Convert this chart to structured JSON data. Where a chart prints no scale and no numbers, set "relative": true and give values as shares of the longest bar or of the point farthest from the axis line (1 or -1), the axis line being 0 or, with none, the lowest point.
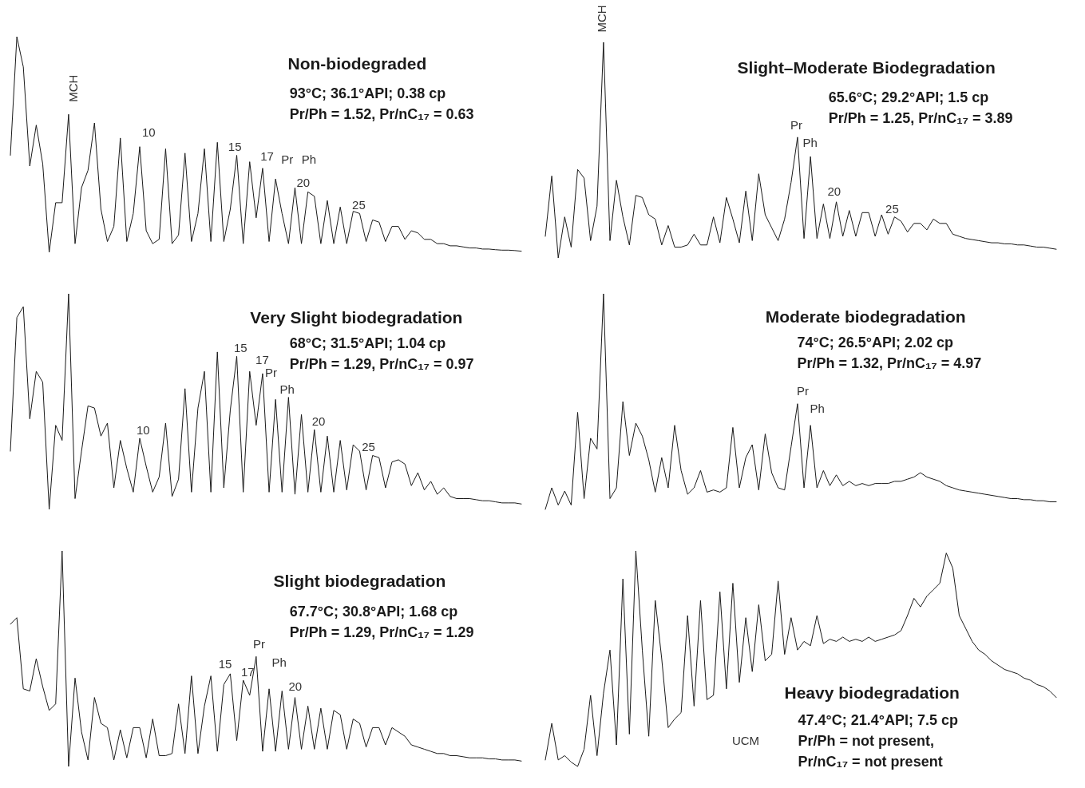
{
  "chart_data": [
    {
      "type": "line",
      "relative": true,
      "tick_labels": false,
      "title": "Non-biodegraded",
      "subtitle": "93°C; 36.1°API; 0.38 cp\nPr/Ph = 1.52, Pr/nC₁₇ = 0.63",
      "annotations": [
        "MCH",
        "10",
        "15",
        "17",
        "Pr",
        "Ph",
        "20",
        "25"
      ],
      "color": "#1a1a1a",
      "categories": [
        null,
        null,
        null,
        null,
        null,
        null,
        null,
        null,
        null,
        null,
        null,
        null,
        null,
        null,
        null,
        null,
        null,
        null,
        null,
        null,
        null,
        null,
        null,
        null,
        null,
        null,
        null,
        null,
        null,
        null,
        null,
        null,
        null,
        null,
        null,
        null,
        null,
        null,
        null,
        null,
        null,
        null,
        null,
        null,
        null,
        null,
        null,
        null,
        null,
        null,
        null,
        null,
        null,
        null,
        null,
        null,
        null,
        null,
        null,
        null,
        null,
        null,
        null,
        null,
        null,
        null,
        null,
        null,
        null,
        null,
        null,
        null,
        null,
        null,
        null,
        null,
        null,
        null,
        null,
        null
      ],
      "values": [
        0.45,
        1.0,
        0.86,
        0.4,
        0.59,
        0.41,
        0.0,
        0.23,
        0.23,
        0.64,
        0.04,
        0.3,
        0.38,
        0.6,
        0.2,
        0.05,
        0.12,
        0.53,
        0.05,
        0.18,
        0.49,
        0.1,
        0.04,
        0.06,
        0.48,
        0.04,
        0.08,
        0.46,
        0.05,
        0.18,
        0.48,
        0.05,
        0.51,
        0.05,
        0.2,
        0.45,
        0.04,
        0.42,
        0.16,
        0.39,
        0.05,
        0.34,
        0.18,
        0.04,
        0.3,
        0.04,
        0.28,
        0.26,
        0.04,
        0.24,
        0.04,
        0.21,
        0.04,
        0.19,
        0.18,
        0.05,
        0.15,
        0.14,
        0.05,
        0.12,
        0.12,
        0.06,
        0.1,
        0.09,
        0.06,
        0.06,
        0.04,
        0.04,
        0.03,
        0.03,
        0.025,
        0.02,
        0.02,
        0.015,
        0.015,
        0.012,
        0.01,
        0.01,
        0.008,
        0.005
      ]
    },
    {
      "type": "line",
      "relative": true,
      "tick_labels": false,
      "title": "Slight–Moderate Biodegradation",
      "subtitle": "65.6°C; 29.2°API; 1.5 cp\nPr/Ph = 1.25, Pr/nC₁₇ = 3.89",
      "annotations": [
        "MCH",
        "Pr",
        "Ph",
        "20",
        "25"
      ],
      "color": "#1a1a1a",
      "categories": [
        null,
        null,
        null,
        null,
        null,
        null,
        null,
        null,
        null,
        null,
        null,
        null,
        null,
        null,
        null,
        null,
        null,
        null,
        null,
        null,
        null,
        null,
        null,
        null,
        null,
        null,
        null,
        null,
        null,
        null,
        null,
        null,
        null,
        null,
        null,
        null,
        null,
        null,
        null,
        null,
        null,
        null,
        null,
        null,
        null,
        null,
        null,
        null,
        null,
        null,
        null,
        null,
        null,
        null,
        null,
        null,
        null,
        null,
        null,
        null,
        null,
        null,
        null,
        null,
        null,
        null,
        null,
        null,
        null,
        null,
        null,
        null,
        null,
        null,
        null,
        null,
        null,
        null,
        null,
        null
      ],
      "values": [
        0.1,
        0.38,
        0.0,
        0.19,
        0.05,
        0.41,
        0.37,
        0.08,
        0.24,
        1.0,
        0.08,
        0.36,
        0.19,
        0.06,
        0.29,
        0.28,
        0.2,
        0.18,
        0.06,
        0.15,
        0.05,
        0.05,
        0.06,
        0.11,
        0.06,
        0.06,
        0.19,
        0.07,
        0.28,
        0.18,
        0.07,
        0.31,
        0.08,
        0.39,
        0.2,
        0.14,
        0.08,
        0.18,
        0.35,
        0.56,
        0.09,
        0.47,
        0.09,
        0.25,
        0.09,
        0.26,
        0.1,
        0.22,
        0.1,
        0.21,
        0.21,
        0.1,
        0.2,
        0.11,
        0.19,
        0.17,
        0.12,
        0.16,
        0.16,
        0.13,
        0.18,
        0.16,
        0.16,
        0.11,
        0.1,
        0.09,
        0.085,
        0.08,
        0.075,
        0.07,
        0.07,
        0.065,
        0.065,
        0.06,
        0.06,
        0.055,
        0.05,
        0.05,
        0.045,
        0.04
      ]
    },
    {
      "type": "line",
      "relative": true,
      "tick_labels": false,
      "title": "Very Slight biodegradation",
      "subtitle": "68°C; 31.5°API; 1.04 cp\nPr/Ph = 1.29, Pr/nC₁₇ = 0.97",
      "annotations": [
        "15",
        "17",
        "Pr",
        "Ph",
        "10",
        "20",
        "25"
      ],
      "color": "#1a1a1a",
      "categories": [
        null,
        null,
        null,
        null,
        null,
        null,
        null,
        null,
        null,
        null,
        null,
        null,
        null,
        null,
        null,
        null,
        null,
        null,
        null,
        null,
        null,
        null,
        null,
        null,
        null,
        null,
        null,
        null,
        null,
        null,
        null,
        null,
        null,
        null,
        null,
        null,
        null,
        null,
        null,
        null,
        null,
        null,
        null,
        null,
        null,
        null,
        null,
        null,
        null,
        null,
        null,
        null,
        null,
        null,
        null,
        null,
        null,
        null,
        null,
        null,
        null,
        null,
        null,
        null,
        null,
        null,
        null,
        null,
        null,
        null,
        null,
        null,
        null,
        null,
        null,
        null,
        null,
        null,
        null,
        null
      ],
      "values": [
        0.27,
        0.89,
        0.94,
        0.42,
        0.64,
        0.59,
        0.0,
        0.39,
        0.32,
        1.0,
        0.05,
        0.27,
        0.48,
        0.47,
        0.34,
        0.4,
        0.1,
        0.32,
        0.19,
        0.08,
        0.33,
        0.2,
        0.08,
        0.15,
        0.4,
        0.06,
        0.14,
        0.56,
        0.08,
        0.47,
        0.64,
        0.08,
        0.73,
        0.1,
        0.46,
        0.71,
        0.08,
        0.64,
        0.39,
        0.63,
        0.08,
        0.51,
        0.08,
        0.52,
        0.07,
        0.44,
        0.08,
        0.37,
        0.08,
        0.34,
        0.08,
        0.32,
        0.09,
        0.3,
        0.27,
        0.09,
        0.25,
        0.24,
        0.1,
        0.22,
        0.23,
        0.21,
        0.11,
        0.17,
        0.09,
        0.13,
        0.07,
        0.1,
        0.06,
        0.05,
        0.05,
        0.05,
        0.045,
        0.04,
        0.04,
        0.035,
        0.03,
        0.03,
        0.03,
        0.025
      ]
    },
    {
      "type": "line",
      "relative": true,
      "tick_labels": false,
      "title": "Moderate biodegradation",
      "subtitle": "74°C; 26.5°API; 2.02 cp\nPr/Ph = 1.32, Pr/nC₁₇ = 4.97",
      "annotations": [
        "Pr",
        "Ph"
      ],
      "color": "#1a1a1a",
      "categories": [
        null,
        null,
        null,
        null,
        null,
        null,
        null,
        null,
        null,
        null,
        null,
        null,
        null,
        null,
        null,
        null,
        null,
        null,
        null,
        null,
        null,
        null,
        null,
        null,
        null,
        null,
        null,
        null,
        null,
        null,
        null,
        null,
        null,
        null,
        null,
        null,
        null,
        null,
        null,
        null,
        null,
        null,
        null,
        null,
        null,
        null,
        null,
        null,
        null,
        null,
        null,
        null,
        null,
        null,
        null,
        null,
        null,
        null,
        null,
        null,
        null,
        null,
        null,
        null,
        null,
        null,
        null,
        null,
        null,
        null,
        null,
        null,
        null,
        null,
        null,
        null,
        null,
        null,
        null,
        null
      ],
      "values": [
        0.0,
        0.1,
        0.02,
        0.085,
        0.02,
        0.45,
        0.05,
        0.33,
        0.28,
        1.0,
        0.05,
        0.1,
        0.5,
        0.25,
        0.4,
        0.34,
        0.23,
        0.08,
        0.24,
        0.1,
        0.39,
        0.18,
        0.07,
        0.1,
        0.18,
        0.08,
        0.09,
        0.08,
        0.1,
        0.38,
        0.1,
        0.24,
        0.3,
        0.09,
        0.35,
        0.17,
        0.1,
        0.09,
        0.29,
        0.49,
        0.1,
        0.39,
        0.1,
        0.18,
        0.11,
        0.16,
        0.11,
        0.13,
        0.11,
        0.12,
        0.11,
        0.12,
        0.12,
        0.12,
        0.13,
        0.13,
        0.14,
        0.15,
        0.17,
        0.15,
        0.14,
        0.13,
        0.11,
        0.1,
        0.09,
        0.085,
        0.08,
        0.075,
        0.07,
        0.065,
        0.06,
        0.055,
        0.05,
        0.05,
        0.045,
        0.045,
        0.04,
        0.04,
        0.035,
        0.035
      ]
    },
    {
      "type": "line",
      "relative": true,
      "tick_labels": false,
      "title": "Slight biodegradation",
      "subtitle": "67.7°C; 30.8°API; 1.68 cp\nPr/Ph = 1.29, Pr/nC₁₇ = 1.29",
      "annotations": [
        "15",
        "17",
        "Pr",
        "Ph",
        "20"
      ],
      "color": "#1a1a1a",
      "categories": [
        null,
        null,
        null,
        null,
        null,
        null,
        null,
        null,
        null,
        null,
        null,
        null,
        null,
        null,
        null,
        null,
        null,
        null,
        null,
        null,
        null,
        null,
        null,
        null,
        null,
        null,
        null,
        null,
        null,
        null,
        null,
        null,
        null,
        null,
        null,
        null,
        null,
        null,
        null,
        null,
        null,
        null,
        null,
        null,
        null,
        null,
        null,
        null,
        null,
        null,
        null,
        null,
        null,
        null,
        null,
        null,
        null,
        null,
        null,
        null,
        null,
        null,
        null,
        null,
        null,
        null,
        null,
        null,
        null,
        null,
        null,
        null,
        null,
        null,
        null,
        null,
        null,
        null,
        null,
        null
      ],
      "values": [
        0.66,
        0.69,
        0.36,
        0.35,
        0.5,
        0.37,
        0.26,
        0.29,
        1.0,
        0.0,
        0.41,
        0.16,
        0.03,
        0.32,
        0.2,
        0.18,
        0.03,
        0.17,
        0.04,
        0.18,
        0.18,
        0.04,
        0.22,
        0.05,
        0.05,
        0.06,
        0.29,
        0.06,
        0.42,
        0.06,
        0.28,
        0.42,
        0.07,
        0.38,
        0.43,
        0.12,
        0.4,
        0.33,
        0.51,
        0.07,
        0.36,
        0.07,
        0.35,
        0.08,
        0.32,
        0.08,
        0.28,
        0.08,
        0.27,
        0.08,
        0.26,
        0.24,
        0.08,
        0.22,
        0.2,
        0.09,
        0.18,
        0.18,
        0.1,
        0.18,
        0.16,
        0.14,
        0.1,
        0.09,
        0.08,
        0.07,
        0.06,
        0.06,
        0.05,
        0.05,
        0.045,
        0.04,
        0.04,
        0.04,
        0.035,
        0.035,
        0.03,
        0.03,
        0.03,
        0.025
      ]
    },
    {
      "type": "line",
      "relative": true,
      "tick_labels": false,
      "title": "Heavy biodegradation",
      "subtitle": "47.4°C; 21.4°API; 7.5 cp\nPr/Ph = not present,\nPr/nC₁₇ = not present",
      "annotations": [
        "UCM"
      ],
      "color": "#1a1a1a",
      "categories": [
        null,
        null,
        null,
        null,
        null,
        null,
        null,
        null,
        null,
        null,
        null,
        null,
        null,
        null,
        null,
        null,
        null,
        null,
        null,
        null,
        null,
        null,
        null,
        null,
        null,
        null,
        null,
        null,
        null,
        null,
        null,
        null,
        null,
        null,
        null,
        null,
        null,
        null,
        null,
        null,
        null,
        null,
        null,
        null,
        null,
        null,
        null,
        null,
        null,
        null,
        null,
        null,
        null,
        null,
        null,
        null,
        null,
        null,
        null,
        null,
        null,
        null,
        null,
        null,
        null,
        null,
        null,
        null,
        null,
        null,
        null,
        null,
        null,
        null,
        null,
        null,
        null,
        null,
        null,
        null
      ],
      "values": [
        0.03,
        0.2,
        0.03,
        0.05,
        0.02,
        0.0,
        0.08,
        0.33,
        0.05,
        0.34,
        0.54,
        0.1,
        0.87,
        0.15,
        1.0,
        0.54,
        0.14,
        0.77,
        0.5,
        0.18,
        0.22,
        0.25,
        0.7,
        0.28,
        0.77,
        0.31,
        0.33,
        0.81,
        0.36,
        0.85,
        0.39,
        0.69,
        0.44,
        0.75,
        0.49,
        0.52,
        0.86,
        0.52,
        0.69,
        0.54,
        0.58,
        0.56,
        0.7,
        0.57,
        0.59,
        0.58,
        0.6,
        0.58,
        0.59,
        0.58,
        0.6,
        0.58,
        0.59,
        0.6,
        0.61,
        0.63,
        0.7,
        0.78,
        0.74,
        0.79,
        0.82,
        0.85,
        0.99,
        0.92,
        0.7,
        0.64,
        0.58,
        0.54,
        0.52,
        0.49,
        0.47,
        0.45,
        0.44,
        0.43,
        0.41,
        0.4,
        0.38,
        0.37,
        0.35,
        0.32
      ]
    }
  ]
}
